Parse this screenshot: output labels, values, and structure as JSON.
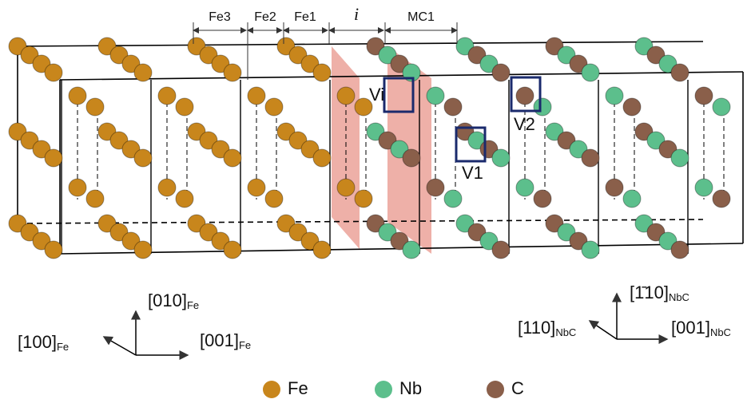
{
  "labels": {
    "fe3": "Fe3",
    "fe2": "Fe2",
    "fe1": "Fe1",
    "interface": "i",
    "mc1": "MC1",
    "vi": "Vi",
    "v1": "V1",
    "v2": "V2"
  },
  "axes_fe": {
    "up": {
      "text": "[010]",
      "sub": "Fe"
    },
    "left": {
      "text": "[100]",
      "sub": "Fe"
    },
    "right": {
      "text": "[001]",
      "sub": "Fe"
    }
  },
  "axes_nbc": {
    "up": {
      "text": "[1̄10]",
      "sub": "NbC"
    },
    "left": {
      "text": "[110]",
      "sub": "NbC"
    },
    "right": {
      "text": "[001]",
      "sub": "NbC"
    }
  },
  "legend": [
    {
      "label": "Fe",
      "color": "#c8861c"
    },
    {
      "label": "Nb",
      "color": "#5cbf8c"
    },
    {
      "label": "C",
      "color": "#8a5f4a"
    }
  ]
}
